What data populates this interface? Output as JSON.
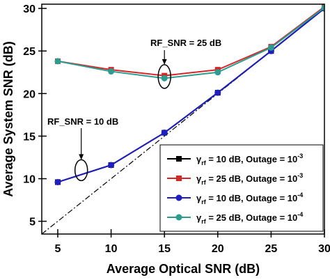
{
  "chart_data": {
    "type": "line",
    "xlabel": "Average Optical SNR (dB)",
    "ylabel": "Average System SNR (dB)",
    "xlim": [
      3.5,
      30
    ],
    "ylim": [
      3.5,
      30.5
    ],
    "xticks": [
      5,
      10,
      15,
      20,
      25,
      30
    ],
    "yticks": [
      5,
      10,
      15,
      20,
      25,
      30
    ],
    "x": [
      5,
      10,
      15,
      20,
      25,
      30
    ],
    "series": [
      {
        "name": "γrf = 10 dB, Outage = 10^-3",
        "legend_pre": "γ",
        "legend_sub": "rf",
        "legend_mid": " = 10 dB, Outage = 10",
        "legend_sup": "-3",
        "color": "#000000",
        "marker": "square",
        "values": [
          9.6,
          11.6,
          15.4,
          20.1,
          25.0,
          30.0
        ]
      },
      {
        "name": "γrf = 25 dB, Outage = 10^-3",
        "legend_pre": "γ",
        "legend_sub": "rf",
        "legend_mid": " = 25 dB, Outage = 10",
        "legend_sup": "-3",
        "color": "#d62728",
        "marker": "square",
        "values": [
          23.8,
          22.8,
          22.1,
          22.8,
          25.5,
          30.2
        ]
      },
      {
        "name": "γrf = 10 dB, Outage = 10^-4",
        "legend_pre": "γ",
        "legend_sub": "rf",
        "legend_mid": " = 10 dB, Outage = 10",
        "legend_sup": "-4",
        "color": "#1f1fbf",
        "marker": "circle",
        "values": [
          9.6,
          11.6,
          15.4,
          20.1,
          25.0,
          30.0
        ]
      },
      {
        "name": "γrf = 25 dB, Outage = 10^-4",
        "legend_pre": "γ",
        "legend_sub": "rf",
        "legend_mid": " = 25 dB, Outage = 10",
        "legend_sup": "-4",
        "color": "#2a9d8f",
        "marker": "circle",
        "values": [
          23.8,
          22.6,
          21.8,
          22.5,
          25.4,
          30.1
        ]
      }
    ],
    "reference_line": {
      "style": "dash-dot",
      "color": "#000000",
      "x": [
        3.5,
        30
      ],
      "y": [
        3.5,
        30
      ]
    },
    "annotations": [
      {
        "text": "RF_SNR = 25 dB",
        "target_x": 15,
        "target_y": 22
      },
      {
        "text": "RF_SNR = 10 dB",
        "target_x": 7.2,
        "target_y": 11
      }
    ],
    "legend_position": "bottom-right",
    "grid": false
  }
}
